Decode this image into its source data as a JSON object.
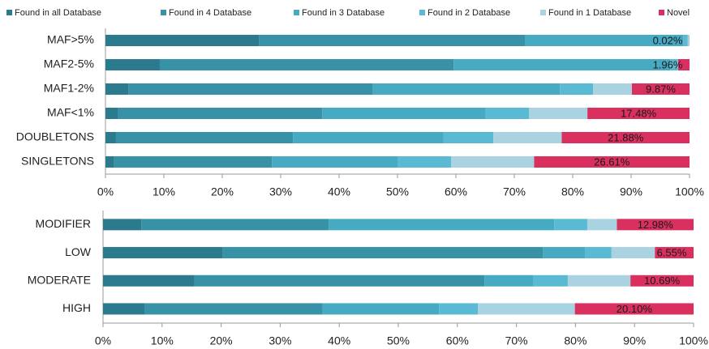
{
  "chart_data": [
    {
      "type": "stacked-bar-horizontal",
      "categories": [
        "MAF>5%",
        "MAF2-5%",
        "MAF1-2%",
        "MAF<1%",
        "DOUBLETONS",
        "SINGLETONS"
      ],
      "series": [
        {
          "name": "Found in all Database",
          "color": "#2b7a8e",
          "values": [
            26.3,
            9.3,
            3.9,
            2.2,
            1.8,
            1.5
          ]
        },
        {
          "name": "Found in 4 Database",
          "color": "#3792a8",
          "values": [
            45.6,
            50.3,
            41.9,
            34.9,
            30.3,
            27.0
          ]
        },
        {
          "name": "Found in 3 Database",
          "color": "#46aac3",
          "values": [
            27.0,
            37.1,
            32.0,
            27.9,
            25.8,
            21.5
          ]
        },
        {
          "name": "Found in 2 Database",
          "color": "#5bbad3",
          "values": [
            0.8,
            1.3,
            5.7,
            7.5,
            8.5,
            9.2
          ]
        },
        {
          "name": "Found in 1 Database",
          "color": "#a9d3e0",
          "values": [
            0.28,
            0.04,
            6.63,
            10.02,
            11.72,
            14.19
          ]
        },
        {
          "name": "Novel",
          "color": "#d9305f",
          "values": [
            0.02,
            1.96,
            9.87,
            17.48,
            21.88,
            26.61
          ],
          "value_labels": [
            "0.02%",
            "1.96%",
            "9.87%",
            "17.48%",
            "21.88%",
            "26.61%"
          ]
        }
      ],
      "xlim": [
        0,
        100
      ],
      "xticks": [
        {
          "value": 0,
          "label": "0%"
        },
        {
          "value": 10,
          "label": "10%"
        },
        {
          "value": 20,
          "label": "20%"
        },
        {
          "value": 30,
          "label": "30%"
        },
        {
          "value": 40,
          "label": "40%"
        },
        {
          "value": 50,
          "label": "50%"
        },
        {
          "value": 60,
          "label": "60%"
        },
        {
          "value": 70,
          "label": "70%"
        },
        {
          "value": 80,
          "label": "80%"
        },
        {
          "value": 90,
          "label": "90%"
        },
        {
          "value": 100,
          "label": "100%"
        }
      ],
      "legend": "top"
    },
    {
      "type": "stacked-bar-horizontal",
      "categories": [
        "MODIFIER",
        "LOW",
        "MODERATE",
        "HIGH"
      ],
      "series": [
        {
          "color": "#2b7a8e",
          "values": [
            6.5,
            20.3,
            15.5,
            7.1
          ]
        },
        {
          "color": "#3792a8",
          "values": [
            31.7,
            54.2,
            49.1,
            30.1
          ]
        },
        {
          "color": "#46aac3",
          "values": [
            38.2,
            7.2,
            8.2,
            19.7
          ]
        },
        {
          "color": "#5bbad3",
          "values": [
            5.6,
            4.4,
            5.9,
            6.6
          ]
        },
        {
          "color": "#a9d3e0",
          "values": [
            5.02,
            7.35,
            10.61,
            16.4
          ]
        },
        {
          "color": "#d9305f",
          "values": [
            12.98,
            6.55,
            10.69,
            20.1
          ],
          "value_labels": [
            "12.98%",
            "6.55%",
            "10.69%",
            "20.10%"
          ]
        }
      ],
      "xlim": [
        0,
        100
      ],
      "xticks": [
        {
          "value": 0,
          "label": "0%"
        },
        {
          "value": 10,
          "label": "10%"
        },
        {
          "value": 20,
          "label": "20%"
        },
        {
          "value": 30,
          "label": "30%"
        },
        {
          "value": 40,
          "label": "40%"
        },
        {
          "value": 50,
          "label": "50%"
        },
        {
          "value": 60,
          "label": "60%"
        },
        {
          "value": 70,
          "label": "70%"
        },
        {
          "value": 80,
          "label": "80%"
        },
        {
          "value": 90,
          "label": "90%"
        },
        {
          "value": 100,
          "label": "100%"
        }
      ]
    }
  ]
}
